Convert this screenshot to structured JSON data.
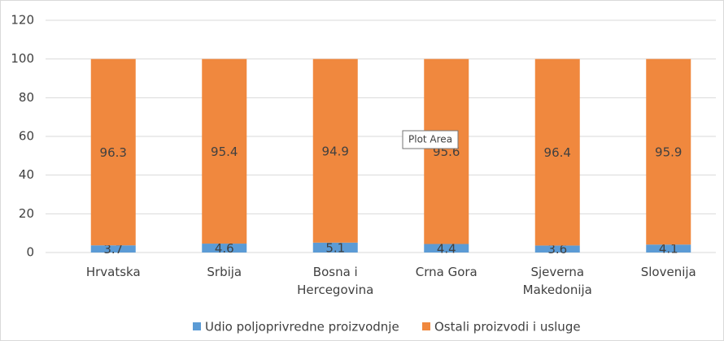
{
  "chart_data": {
    "type": "stacked_bar",
    "categories": [
      "Hrvatska",
      "Srbija",
      "Bosna i Hercegovina",
      "Crna Gora",
      "Sjeverna Makedonija",
      "Slovenija"
    ],
    "series": [
      {
        "name": "Udio poljoprivredne proizvodnje",
        "color": "#5b9bd5",
        "values": [
          3.7,
          4.6,
          5.1,
          4.4,
          3.6,
          4.1
        ]
      },
      {
        "name": "Ostali proizvodi i usluge",
        "color": "#f0883e",
        "values": [
          96.3,
          95.4,
          94.9,
          95.6,
          96.4,
          95.9
        ]
      }
    ],
    "ylim": [
      0,
      120
    ],
    "yticks": [
      0,
      20,
      40,
      60,
      80,
      100,
      120
    ],
    "grid": true,
    "legend": "bottom",
    "tooltip": "Plot Area"
  }
}
